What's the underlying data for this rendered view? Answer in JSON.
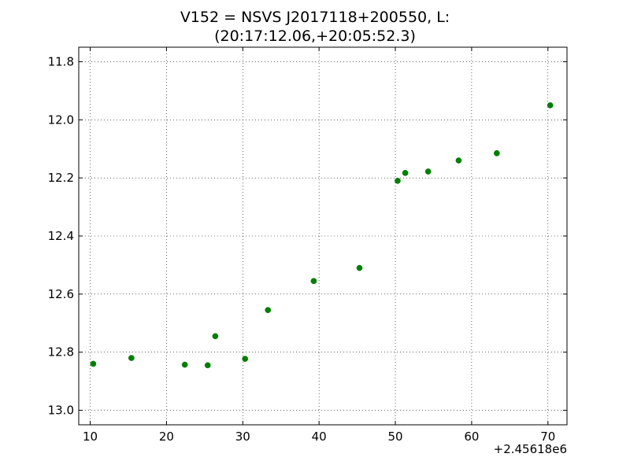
{
  "chart_data": {
    "type": "scatter",
    "title_lines": [
      "V152 = NSVS J2017118+200550, L:",
      "(20:17:12.06,+20:05:52.3)"
    ],
    "xlabel": "",
    "ylabel": "",
    "x_offset_label": "+2.45618e6",
    "xlim": [
      8.5,
      72.5
    ],
    "ylim": [
      13.05,
      11.75
    ],
    "y_inverted": true,
    "x_ticks": [
      10,
      20,
      30,
      40,
      50,
      60,
      70
    ],
    "x_tick_labels": [
      "10",
      "20",
      "30",
      "40",
      "50",
      "60",
      "70"
    ],
    "y_ticks": [
      11.8,
      12.0,
      12.2,
      12.4,
      12.6,
      12.8,
      13.0
    ],
    "y_tick_labels": [
      "11.8",
      "12.0",
      "12.2",
      "12.4",
      "12.6",
      "12.8",
      "13.0"
    ],
    "grid": true,
    "marker_color": "#007f00",
    "points": [
      {
        "x": 10.4,
        "y": 12.84
      },
      {
        "x": 15.4,
        "y": 12.82
      },
      {
        "x": 22.4,
        "y": 12.843
      },
      {
        "x": 25.4,
        "y": 12.845
      },
      {
        "x": 26.4,
        "y": 12.745
      },
      {
        "x": 30.3,
        "y": 12.823
      },
      {
        "x": 33.3,
        "y": 12.655
      },
      {
        "x": 39.3,
        "y": 12.555
      },
      {
        "x": 45.3,
        "y": 12.51
      },
      {
        "x": 50.3,
        "y": 12.21
      },
      {
        "x": 51.3,
        "y": 12.183
      },
      {
        "x": 54.3,
        "y": 12.178
      },
      {
        "x": 58.3,
        "y": 12.14
      },
      {
        "x": 63.3,
        "y": 12.115
      },
      {
        "x": 70.3,
        "y": 11.95
      }
    ]
  }
}
